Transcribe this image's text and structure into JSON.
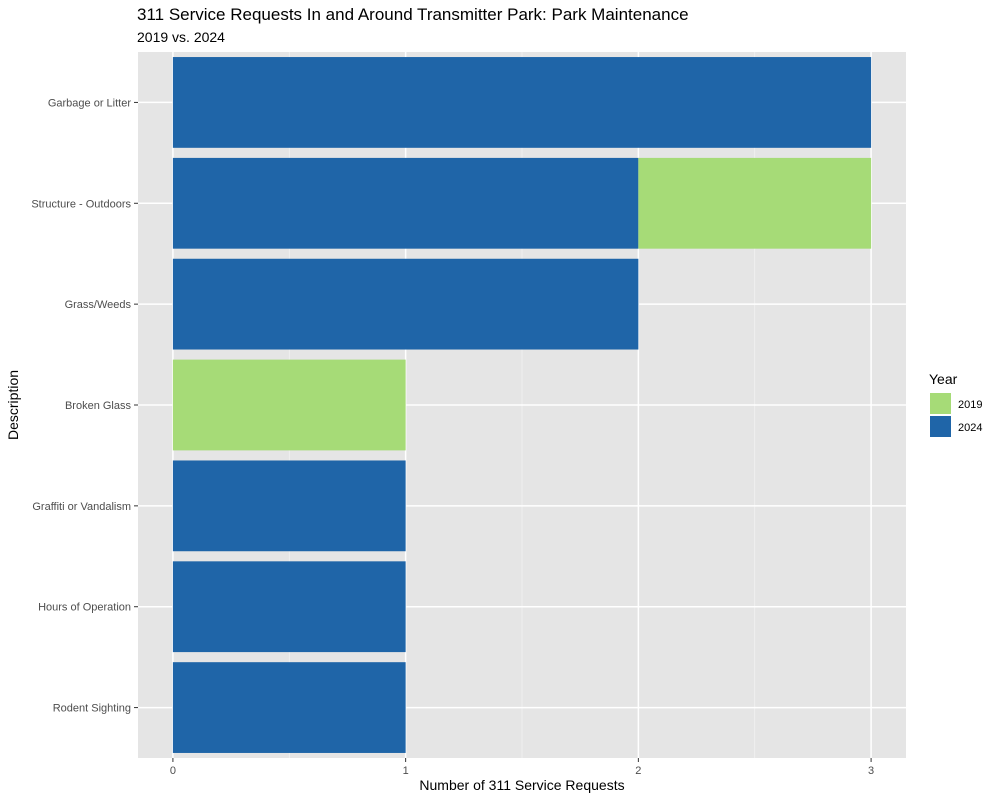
{
  "chart_data": {
    "type": "bar",
    "orientation": "horizontal",
    "stacked": true,
    "title": "311 Service Requests In and Around Transmitter Park: Park Maintenance",
    "subtitle": "2019 vs. 2024",
    "xlabel": "Number of 311 Service Requests",
    "ylabel": "Description",
    "categories": [
      "Garbage or Litter",
      "Structure - Outdoors",
      "Grass/Weeds",
      "Broken Glass",
      "Graffiti or Vandalism",
      "Hours of Operation",
      "Rodent Sighting"
    ],
    "series": [
      {
        "name": "2024",
        "color": "#1f65a8",
        "values": [
          3,
          2,
          2,
          0,
          1,
          1,
          1
        ]
      },
      {
        "name": "2019",
        "color": "#a6db77",
        "values": [
          0,
          1,
          0,
          1,
          0,
          0,
          0
        ]
      }
    ],
    "xlim": [
      -0.15,
      3.15
    ],
    "x_ticks": [
      0,
      1,
      2,
      3
    ],
    "grid": true,
    "legend": {
      "title": "Year",
      "position": "right",
      "entries": [
        {
          "label": "2019",
          "color": "#a6db77"
        },
        {
          "label": "2024",
          "color": "#1f65a8"
        }
      ]
    }
  }
}
